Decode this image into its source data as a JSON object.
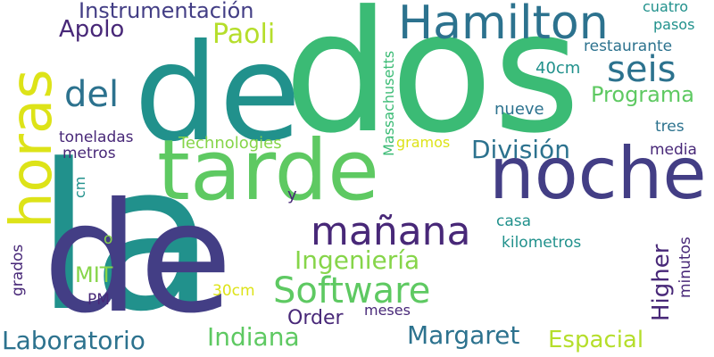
{
  "words": [
    {
      "text": "la",
      "color": "#21918c"
    },
    {
      "text": "dos",
      "color": "#3bbb75"
    },
    {
      "text": "de",
      "color": "#21918c"
    },
    {
      "text": "de",
      "color": "#433e85"
    },
    {
      "text": "tarde",
      "color": "#5ec962"
    },
    {
      "text": "noche",
      "color": "#433e85"
    },
    {
      "text": "horas",
      "color": "#dde318"
    },
    {
      "text": "Hamilton",
      "color": "#2c728e"
    },
    {
      "text": "mañana",
      "color": "#482878"
    },
    {
      "text": "Software",
      "color": "#5ec962"
    },
    {
      "text": "del",
      "color": "#2c728e"
    },
    {
      "text": "seis",
      "color": "#2c728e"
    },
    {
      "text": "Paoli",
      "color": "#b5de2b"
    },
    {
      "text": "Instrumentación",
      "color": "#433e85"
    },
    {
      "text": "Apolo",
      "color": "#482878"
    },
    {
      "text": "División",
      "color": "#2c728e"
    },
    {
      "text": "Programa",
      "color": "#5ec962"
    },
    {
      "text": "Ingeniería",
      "color": "#86d549"
    },
    {
      "text": "Margaret",
      "color": "#2c728e"
    },
    {
      "text": "Indiana",
      "color": "#5ec962"
    },
    {
      "text": "Laboratorio",
      "color": "#2c728e"
    },
    {
      "text": "Espacial",
      "color": "#b5de2b"
    },
    {
      "text": "Order",
      "color": "#482878"
    },
    {
      "text": "Higher",
      "color": "#482878"
    },
    {
      "text": "MIT",
      "color": "#86d549"
    },
    {
      "text": "Massachusetts",
      "color": "#3bbb75"
    },
    {
      "text": "Technologies",
      "color": "#86d549"
    },
    {
      "text": "toneladas",
      "color": "#482878"
    },
    {
      "text": "metros",
      "color": "#482878"
    },
    {
      "text": "restaurante",
      "color": "#2c728e"
    },
    {
      "text": "cuatro",
      "color": "#21918c"
    },
    {
      "text": "pasos",
      "color": "#21918c"
    },
    {
      "text": "40cm",
      "color": "#21918c"
    },
    {
      "text": "nueve",
      "color": "#2c728e"
    },
    {
      "text": "tres",
      "color": "#2c728e"
    },
    {
      "text": "media",
      "color": "#482878"
    },
    {
      "text": "gramos",
      "color": "#dde318"
    },
    {
      "text": "cm",
      "color": "#21918c"
    },
    {
      "text": "y",
      "color": "#482878"
    },
    {
      "text": "casa",
      "color": "#21918c"
    },
    {
      "text": "kilometros",
      "color": "#21918c"
    },
    {
      "text": "o",
      "color": "#86d549"
    },
    {
      "text": "grados",
      "color": "#482878"
    },
    {
      "text": "PM",
      "color": "#482878"
    },
    {
      "text": "30cm",
      "color": "#dde318"
    },
    {
      "text": "meses",
      "color": "#482878"
    },
    {
      "text": "minutos",
      "color": "#482878"
    }
  ]
}
